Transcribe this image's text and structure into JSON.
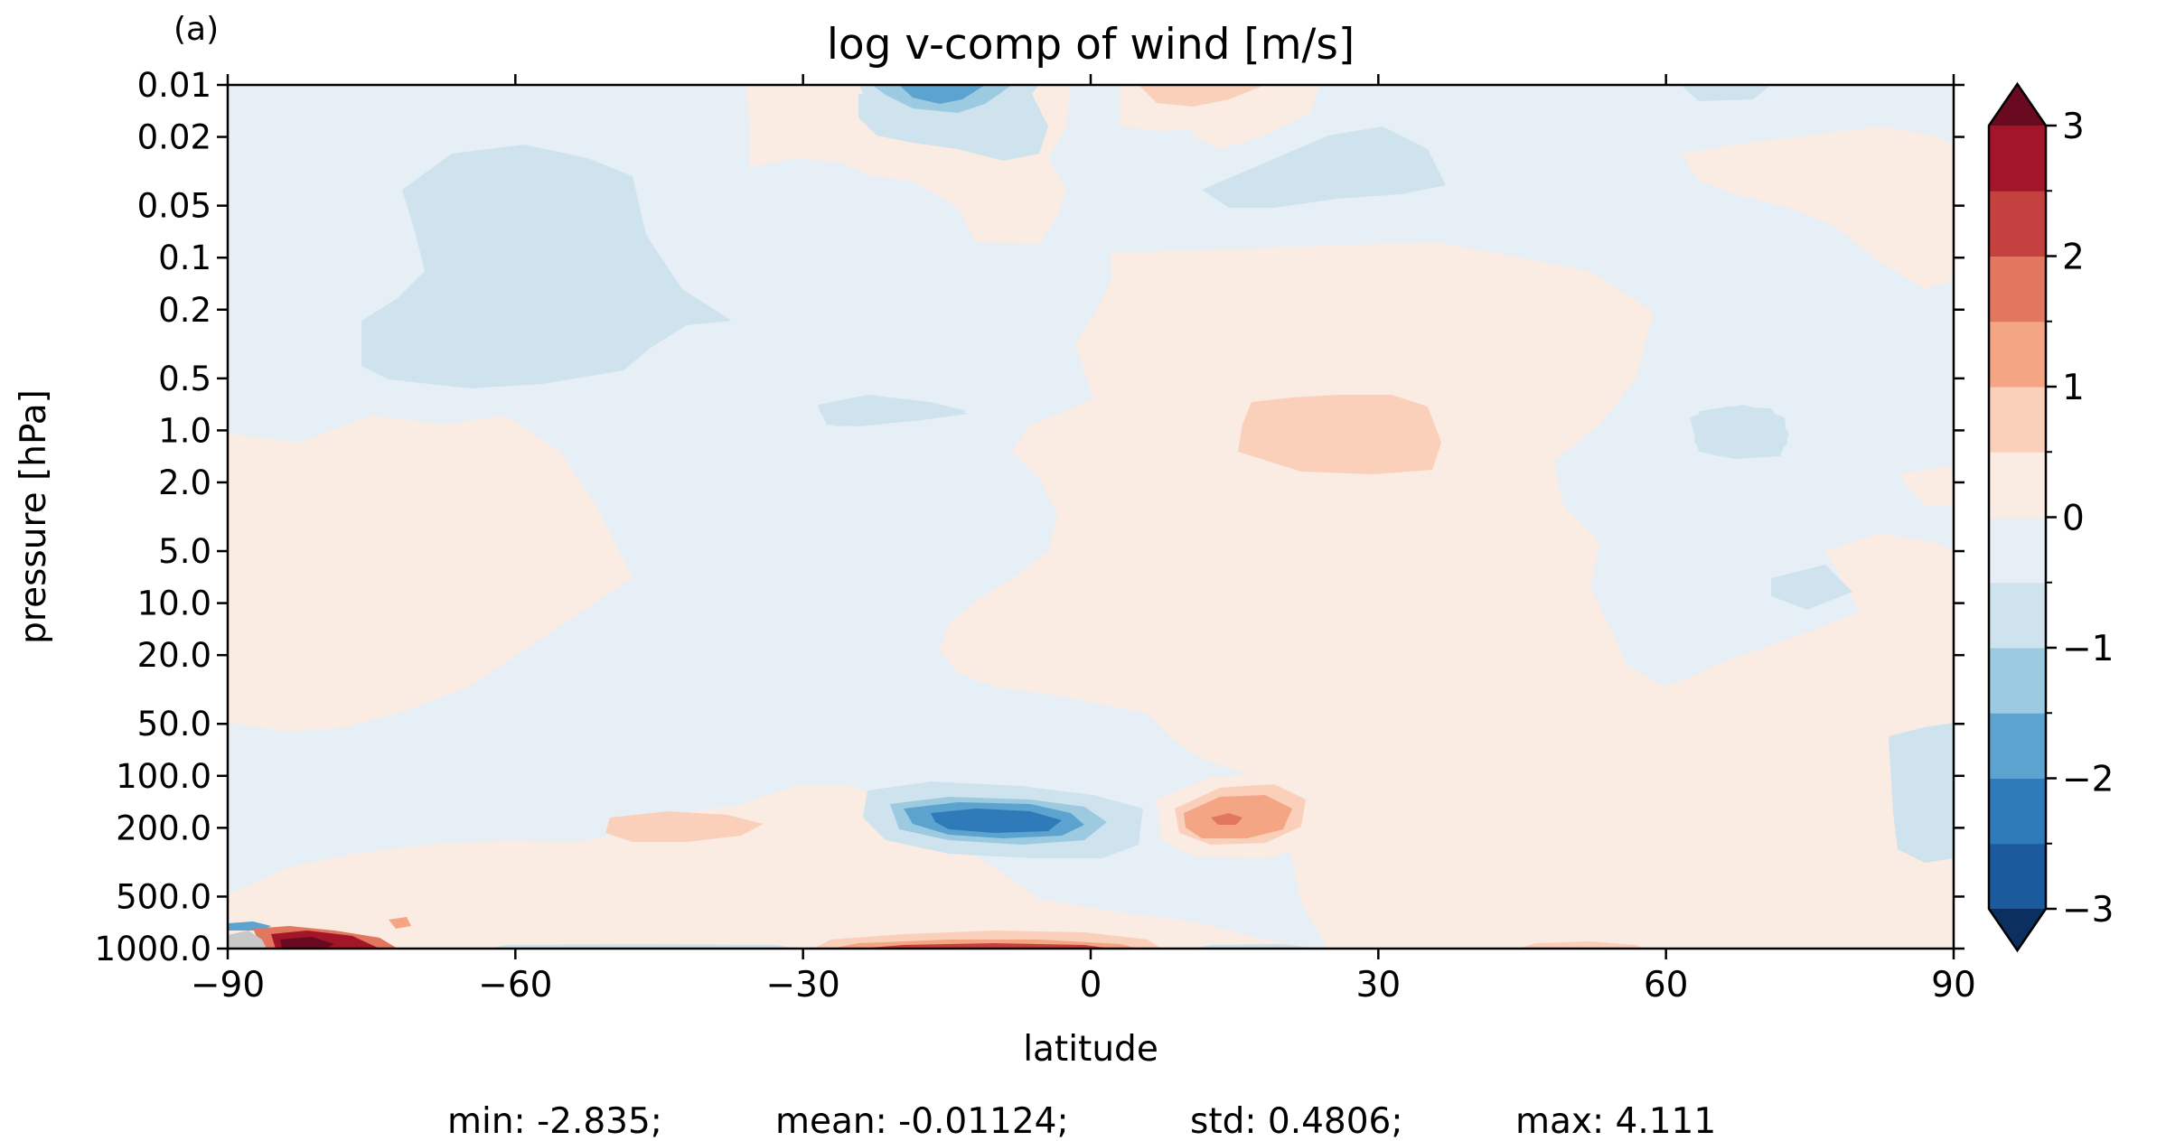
{
  "panel_label": "(a)",
  "chart_data": {
    "type": "heatmap",
    "title": "log v-comp of wind [m/s]",
    "xlabel": "latitude",
    "ylabel": "pressure [hPa]",
    "xlim": [
      -90,
      90
    ],
    "ylim": [
      1000,
      0.01
    ],
    "y_scale": "log",
    "x_ticks": [
      -90,
      -60,
      -30,
      0,
      30,
      60,
      90
    ],
    "x_tick_labels": [
      "−90",
      "−60",
      "−30",
      "0",
      "30",
      "60",
      "90"
    ],
    "y_ticks": [
      0.01,
      0.02,
      0.05,
      0.1,
      0.2,
      0.5,
      1.0,
      2.0,
      5.0,
      10.0,
      20.0,
      50.0,
      100.0,
      200.0,
      500.0,
      1000.0
    ],
    "y_tick_labels": [
      "0.01",
      "0.02",
      "0.05",
      "0.1",
      "0.2",
      "0.5",
      "1.0",
      "2.0",
      "5.0",
      "10.0",
      "20.0",
      "50.0",
      "100.0",
      "200.0",
      "500.0",
      "1000.0"
    ],
    "colorbar": {
      "levels": [
        -3,
        -2.5,
        -2,
        -1.5,
        -1,
        -0.5,
        0,
        0.5,
        1,
        1.5,
        2,
        2.5,
        3
      ],
      "colors": [
        "#1b5a9c",
        "#2f7ab8",
        "#5ca3cf",
        "#9ccae1",
        "#cfe3ee",
        "#e6eff5",
        "#faebe3",
        "#fad0bb",
        "#f4a584",
        "#e0775e",
        "#c5413f",
        "#a31528"
      ],
      "extend_low_color": "#0b2f5e",
      "extend_high_color": "#6a0a20",
      "tick_values": [
        3,
        2,
        1,
        0,
        -1,
        -2,
        -3
      ],
      "tick_labels": [
        "3",
        "2",
        "1",
        "0",
        "−1",
        "−2",
        "−3"
      ],
      "extend": "both"
    },
    "land_color": "#c8c8c8",
    "stats": {
      "min": "min: -2.835;",
      "mean": "mean: -0.01124;",
      "std": "std: 0.4806;",
      "max": "max: 4.111"
    }
  }
}
